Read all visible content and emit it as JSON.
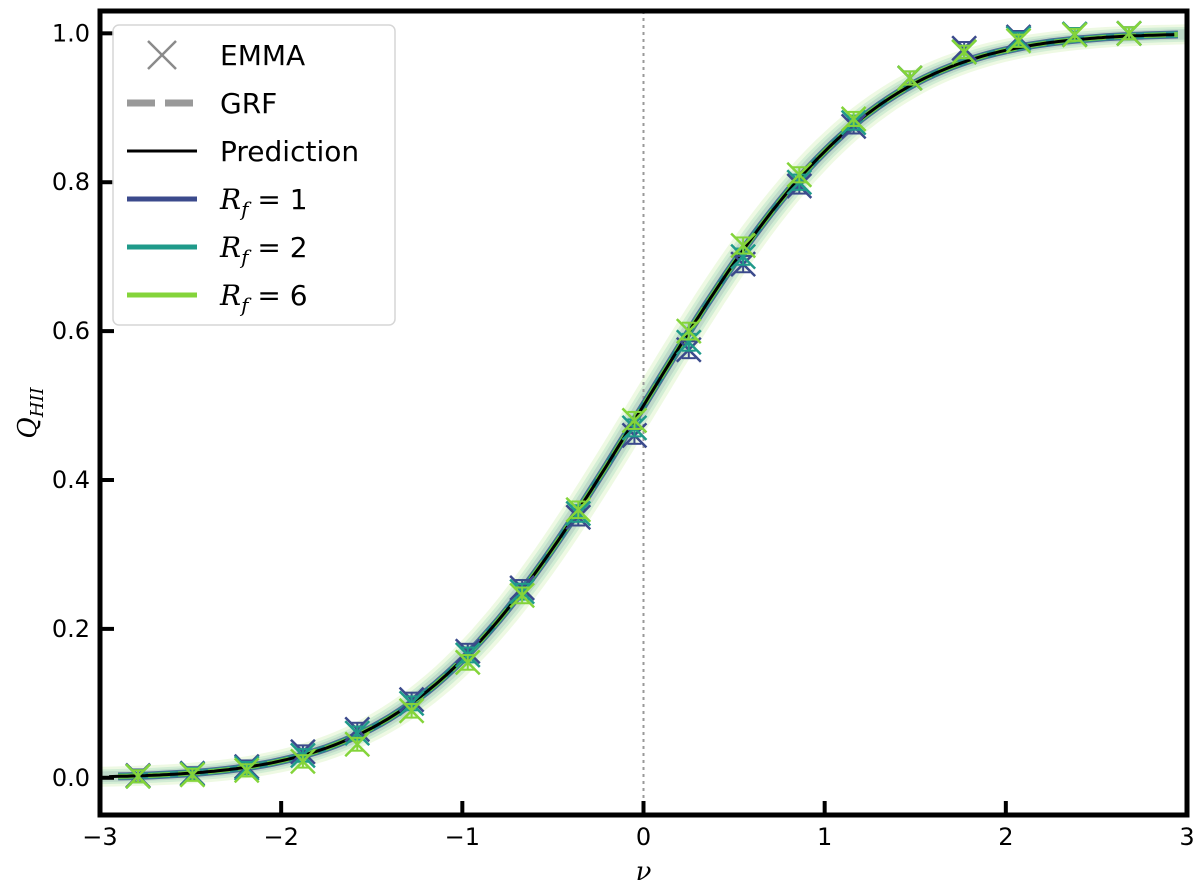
{
  "chart_data": {
    "type": "line",
    "xlabel": "ν",
    "ylabel": "Q_HII",
    "xlim": [
      -3,
      3
    ],
    "ylim": [
      -0.05,
      1.03
    ],
    "xticks": [
      -3,
      -2,
      -1,
      0,
      1,
      2,
      3
    ],
    "xtick_labels": [
      "−3",
      "−2",
      "−1",
      "0",
      "1",
      "2",
      "3"
    ],
    "yticks": [
      0.0,
      0.2,
      0.4,
      0.6,
      0.8,
      1.0
    ],
    "ytick_labels": [
      "0.0",
      "0.2",
      "0.4",
      "0.6",
      "0.8",
      "1.0"
    ],
    "vline_x": 0,
    "legend_placement": "top-left",
    "legend": [
      {
        "label": "EMMA",
        "marker": "x",
        "color": "#8a8a8a"
      },
      {
        "label": "GRF",
        "marker": "dashed-line",
        "color": "#999999"
      },
      {
        "label": "Prediction",
        "marker": "line",
        "color": "#000000"
      },
      {
        "label_main": "R",
        "label_sub": "f",
        "label_rest": " = 1",
        "marker": "line",
        "color": "#3b4a8c"
      },
      {
        "label_main": "R",
        "label_sub": "f",
        "label_rest": " = 2",
        "marker": "line",
        "color": "#1f9a8a"
      },
      {
        "label_main": "R",
        "label_sub": "f",
        "label_rest": " = 6",
        "marker": "line",
        "color": "#84d43a"
      }
    ],
    "prediction": {
      "color": "#000000",
      "description": "Q = 0.5 * (1 + erf(nu / sqrt(2)))"
    },
    "band_colors": [
      "#3b4a8c",
      "#1f9a8a",
      "#84d43a"
    ],
    "series": [
      {
        "name": "R_f = 1",
        "color": "#3b4a8c",
        "x": [
          -2.79,
          -2.49,
          -2.19,
          -1.88,
          -1.58,
          -1.28,
          -0.97,
          -0.67,
          -0.36,
          -0.05,
          0.25,
          0.55,
          0.86,
          1.16,
          1.47,
          1.77,
          2.07,
          2.38,
          2.68
        ],
        "y": [
          0.003,
          0.006,
          0.015,
          0.035,
          0.065,
          0.105,
          0.17,
          0.255,
          0.35,
          0.46,
          0.575,
          0.69,
          0.795,
          0.875,
          0.94,
          0.98,
          0.995,
          0.999,
          1.0
        ]
      },
      {
        "name": "R_f = 2",
        "color": "#1f9a8a",
        "x": [
          -2.79,
          -2.49,
          -2.19,
          -1.88,
          -1.58,
          -1.28,
          -0.97,
          -0.67,
          -0.36,
          -0.05,
          0.25,
          0.55,
          0.86,
          1.16,
          1.47,
          1.77,
          2.07,
          2.38,
          2.68
        ],
        "y": [
          0.002,
          0.005,
          0.013,
          0.03,
          0.06,
          0.1,
          0.165,
          0.25,
          0.355,
          0.47,
          0.585,
          0.7,
          0.8,
          0.88,
          0.94,
          0.975,
          0.993,
          0.999,
          1.0
        ]
      },
      {
        "name": "R_f = 6",
        "color": "#84d43a",
        "x": [
          -2.79,
          -2.49,
          -2.19,
          -1.88,
          -1.58,
          -1.28,
          -0.97,
          -0.67,
          -0.36,
          -0.05,
          0.25,
          0.55,
          0.86,
          1.16,
          1.47,
          1.77,
          2.07,
          2.38,
          2.68
        ],
        "y": [
          0.002,
          0.004,
          0.01,
          0.022,
          0.045,
          0.09,
          0.155,
          0.245,
          0.36,
          0.48,
          0.6,
          0.715,
          0.81,
          0.885,
          0.94,
          0.975,
          0.99,
          0.998,
          1.0
        ]
      }
    ]
  }
}
